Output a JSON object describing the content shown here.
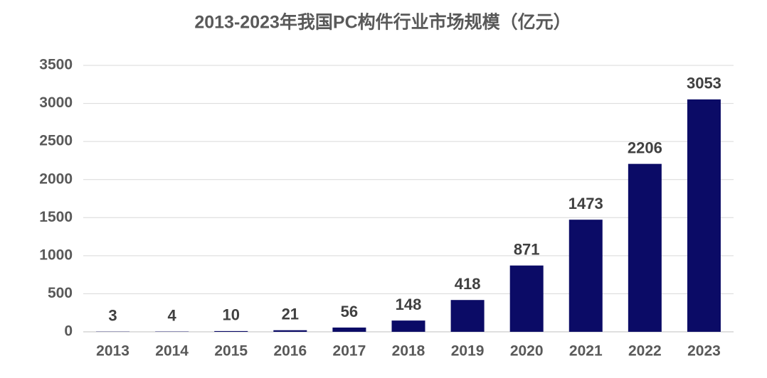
{
  "chart_data": {
    "type": "bar",
    "title": "2013-2023年我国PC构件行业市场规模（亿元）",
    "categories": [
      "2013",
      "2014",
      "2015",
      "2016",
      "2017",
      "2018",
      "2019",
      "2020",
      "2021",
      "2022",
      "2023"
    ],
    "values": [
      3,
      4,
      10,
      21,
      56,
      148,
      418,
      871,
      1473,
      2206,
      3053
    ],
    "color": "#0b0b66",
    "ylim": [
      0,
      3500
    ],
    "yticks": [
      0,
      500,
      1000,
      1500,
      2000,
      2500,
      3000,
      3500
    ],
    "grid": true
  }
}
